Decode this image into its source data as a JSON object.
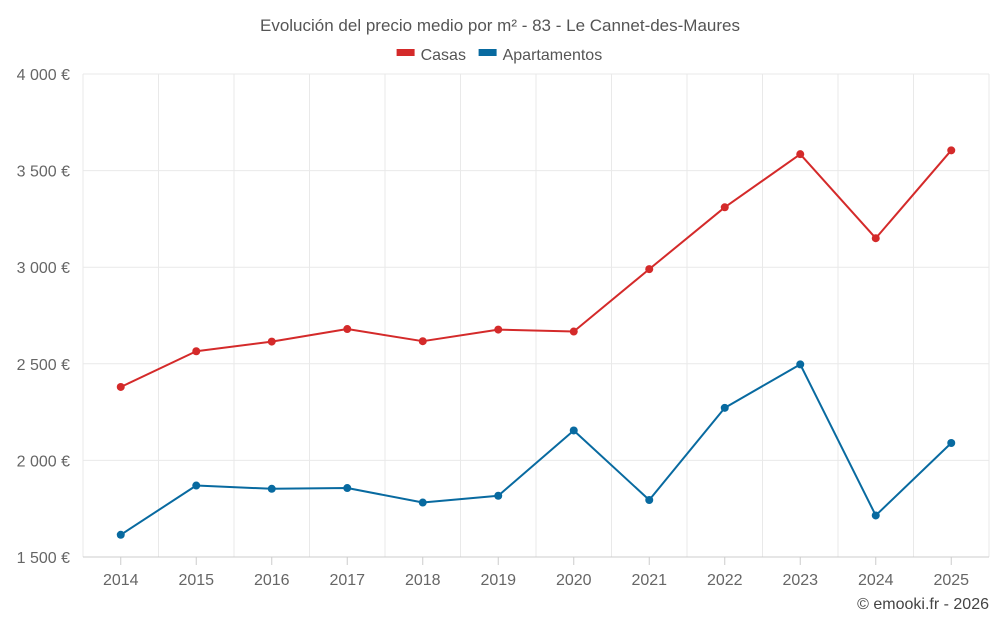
{
  "chart_data": {
    "type": "line",
    "title": "Evolución del precio medio por m² - 83 - Le Cannet-des-Maures",
    "xlabel": "",
    "ylabel": "",
    "categories": [
      "2014",
      "2015",
      "2016",
      "2017",
      "2018",
      "2019",
      "2020",
      "2021",
      "2022",
      "2023",
      "2024",
      "2025"
    ],
    "ylim": [
      1500,
      4000
    ],
    "yticks": [
      1500,
      2000,
      2500,
      3000,
      3500,
      4000
    ],
    "ytick_labels": [
      "1 500 €",
      "2 000 €",
      "2 500 €",
      "3 000 €",
      "3 500 €",
      "4 000 €"
    ],
    "grid": true,
    "legend_position": "top-center",
    "series": [
      {
        "name": "Casas",
        "color": "#d42a2a",
        "values": [
          2380,
          2565,
          2615,
          2680,
          2617,
          2677,
          2667,
          2990,
          3310,
          3585,
          3150,
          3605
        ]
      },
      {
        "name": "Apartamentos",
        "color": "#086aa0",
        "values": [
          1615,
          1870,
          1853,
          1857,
          1782,
          1817,
          2155,
          1795,
          2272,
          2497,
          1715,
          2090
        ]
      }
    ]
  },
  "credit": "© emooki.fr - 2026"
}
